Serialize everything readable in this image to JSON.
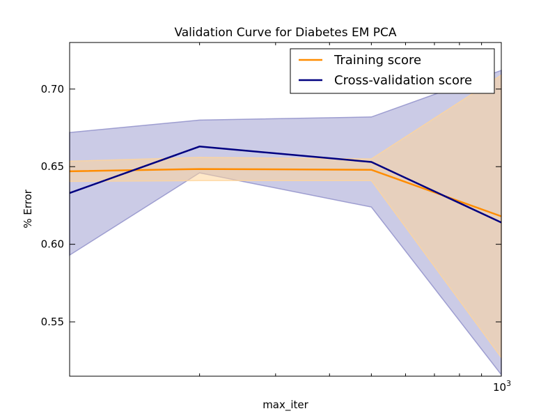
{
  "chart_data": {
    "type": "line",
    "title": "Validation Curve for Diabetes EM PCA",
    "xlabel": "max_iter",
    "ylabel": "% Error",
    "xscale": "log",
    "x": [
      100,
      200,
      500,
      1000
    ],
    "xlim": [
      100,
      1000
    ],
    "ylim": [
      0.515,
      0.73
    ],
    "y_ticks": [
      "0.55",
      "0.60",
      "0.65",
      "0.70"
    ],
    "x_tick_label": {
      "base": "10",
      "exponent": "3"
    },
    "grid": false,
    "legend_position": "top-right",
    "series": [
      {
        "name": "Training score",
        "color": "#ff8c00",
        "band_color": "#ffd59a",
        "values": [
          0.647,
          0.6485,
          0.648,
          0.618
        ],
        "band_upper": [
          0.6535,
          0.656,
          0.655,
          0.709
        ],
        "band_lower": [
          0.6405,
          0.641,
          0.641,
          0.527
        ]
      },
      {
        "name": "Cross-validation score",
        "color": "#000080",
        "band_color": "#8c8cc8",
        "values": [
          0.633,
          0.663,
          0.653,
          0.614
        ],
        "band_upper": [
          0.672,
          0.68,
          0.682,
          0.712
        ],
        "band_lower": [
          0.593,
          0.646,
          0.624,
          0.516
        ]
      }
    ]
  }
}
